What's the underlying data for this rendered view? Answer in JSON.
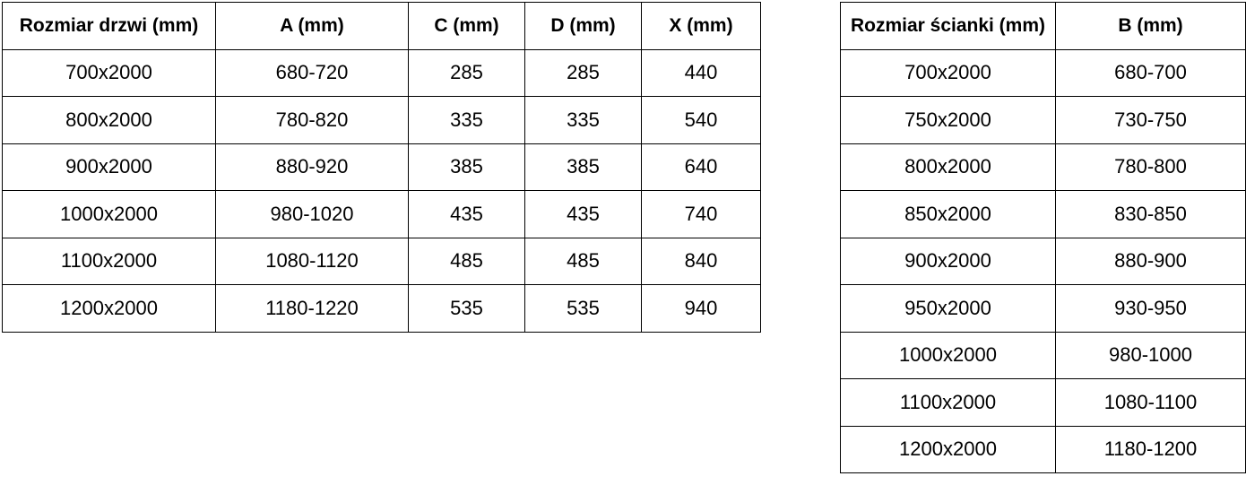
{
  "doors_table": {
    "headers": [
      "Rozmiar drzwi (mm)",
      "A (mm)",
      "C (mm)",
      "D (mm)",
      "X (mm)"
    ],
    "rows": [
      [
        "700x2000",
        "680-720",
        "285",
        "285",
        "440"
      ],
      [
        "800x2000",
        "780-820",
        "335",
        "335",
        "540"
      ],
      [
        "900x2000",
        "880-920",
        "385",
        "385",
        "640"
      ],
      [
        "1000x2000",
        "980-1020",
        "435",
        "435",
        "740"
      ],
      [
        "1100x2000",
        "1080-1120",
        "485",
        "485",
        "840"
      ],
      [
        "1200x2000",
        "1180-1220",
        "535",
        "535",
        "940"
      ]
    ]
  },
  "walls_table": {
    "headers": [
      "Rozmiar ścianki (mm)",
      "B (mm)"
    ],
    "rows": [
      [
        "700x2000",
        "680-700"
      ],
      [
        "750x2000",
        "730-750"
      ],
      [
        "800x2000",
        "780-800"
      ],
      [
        "850x2000",
        "830-850"
      ],
      [
        "900x2000",
        "880-900"
      ],
      [
        "950x2000",
        "930-950"
      ],
      [
        "1000x2000",
        "980-1000"
      ],
      [
        "1100x2000",
        "1080-1100"
      ],
      [
        "1200x2000",
        "1180-1200"
      ]
    ]
  },
  "colors": {
    "border": "#000000",
    "text": "#000000",
    "background": "#ffffff"
  }
}
